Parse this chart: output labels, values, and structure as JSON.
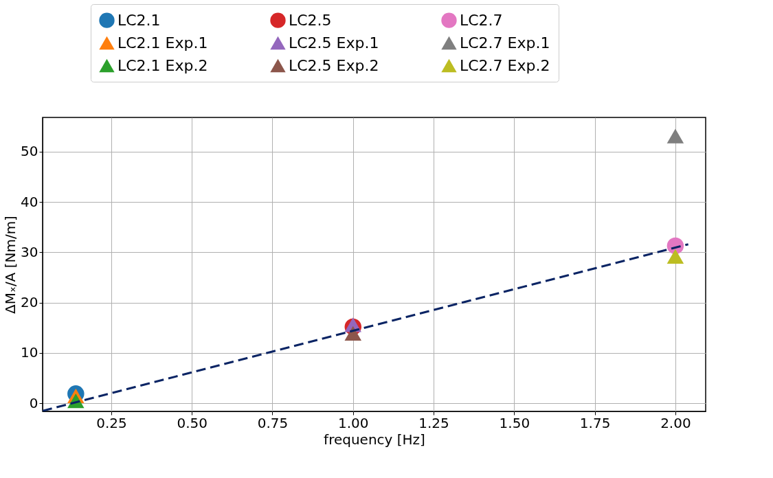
{
  "chart_data": {
    "type": "scatter",
    "xlabel": "frequency [Hz]",
    "ylabel": "ΔMₓ/A [Nm/m]",
    "xlim": [
      0.037,
      2.094
    ],
    "ylim": [
      -1.6,
      56.8
    ],
    "xticks": [
      {
        "value": 0.25,
        "label": "0.25"
      },
      {
        "value": 0.5,
        "label": "0.50"
      },
      {
        "value": 0.75,
        "label": "0.75"
      },
      {
        "value": 1.0,
        "label": "1.00"
      },
      {
        "value": 1.25,
        "label": "1.25"
      },
      {
        "value": 1.5,
        "label": "1.50"
      },
      {
        "value": 1.75,
        "label": "1.75"
      },
      {
        "value": 2.0,
        "label": "2.00"
      }
    ],
    "yticks": [
      0,
      10,
      20,
      30,
      40,
      50
    ],
    "grid": true,
    "legend": "top",
    "series": [
      {
        "name": "LC2.1",
        "color": "#1f77b4",
        "marker": "circle",
        "x": [
          0.14
        ],
        "values": [
          1.9
        ]
      },
      {
        "name": "LC2.1 Exp.1",
        "color": "#ff7f0e",
        "marker": "triangle",
        "x": [
          0.14
        ],
        "values": [
          1.5
        ]
      },
      {
        "name": "LC2.1 Exp.2",
        "color": "#2ca02c",
        "marker": "triangle",
        "x": [
          0.14
        ],
        "values": [
          0.5
        ]
      },
      {
        "name": "LC2.5",
        "color": "#d62728",
        "marker": "circle",
        "x": [
          1.0
        ],
        "values": [
          15.2
        ]
      },
      {
        "name": "LC2.5 Exp.1",
        "color": "#9467bd",
        "marker": "triangle",
        "x": [
          1.0
        ],
        "values": [
          15.6
        ]
      },
      {
        "name": "LC2.5 Exp.2",
        "color": "#8c564b",
        "marker": "triangle",
        "x": [
          1.0
        ],
        "values": [
          13.9
        ]
      },
      {
        "name": "LC2.7",
        "color": "#e377c2",
        "marker": "circle",
        "x": [
          2.0
        ],
        "values": [
          31.3
        ]
      },
      {
        "name": "LC2.7 Exp.1",
        "color": "#7f7f7f",
        "marker": "triangle",
        "x": [
          2.0
        ],
        "values": [
          53.1
        ]
      },
      {
        "name": "LC2.7 Exp.2",
        "color": "#bcbd22",
        "marker": "triangle",
        "x": [
          2.0
        ],
        "values": [
          29.2
        ]
      },
      {
        "type": "line",
        "color": "#0a2464",
        "line_style": "dashed",
        "marker": "none",
        "x": [
          0.037,
          2.04
        ],
        "values": [
          -1.5,
          31.6
        ]
      }
    ]
  }
}
